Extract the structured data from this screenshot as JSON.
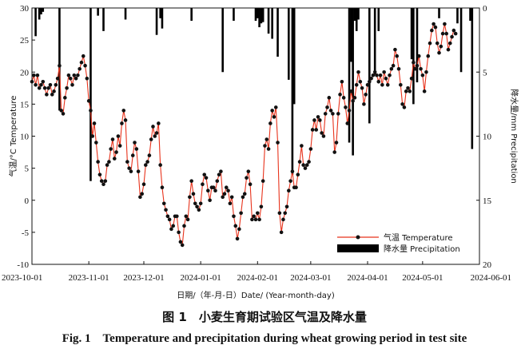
{
  "chart_data": {
    "type": "line+bar",
    "xlabel": "日期/（年-月-日）Date/ (Year-month-day)",
    "ylabel_left": "气温/°C Temperature",
    "ylabel_right": "降水量/mm Precipitation",
    "x_range": [
      "2023-10-01",
      "2024-06-01"
    ],
    "x_ticks": [
      "2023-10-01",
      "2023-11-01",
      "2023-12-01",
      "2024-01-01",
      "2024-02-01",
      "2024-03-01",
      "2024-04-01",
      "2024-05-01",
      "2024-06-01"
    ],
    "ylim_left": [
      -10,
      30
    ],
    "yticks_left": [
      "-10",
      "-5",
      "0",
      "5",
      "10",
      "15",
      "20",
      "25",
      "30"
    ],
    "ylim_right": [
      0,
      20
    ],
    "ylim_right_inverted": true,
    "yticks_right": [
      "0",
      "5",
      "10",
      "15",
      "20"
    ],
    "legend": {
      "placement": "bottom-right",
      "temperature": "气温 Temperature",
      "precipitation": "降水量 Precipitation"
    },
    "colors": {
      "temperature_line": "#e8331c",
      "temperature_marker": "#111111",
      "precipitation_bar": "#000000"
    },
    "temperature_series": {
      "name": "气温 Temperature",
      "start_date": "2023-10-01",
      "step_days": 1,
      "values": [
        18.5,
        19.5,
        18.0,
        19.5,
        17.5,
        18.0,
        18.5,
        17.5,
        16.5,
        17.5,
        18.0,
        16.5,
        17.0,
        18.0,
        19.0,
        21.0,
        14.0,
        13.5,
        16.0,
        17.5,
        19.5,
        19.0,
        18.0,
        19.5,
        19.0,
        19.5,
        20.5,
        21.5,
        22.5,
        21.0,
        19.0,
        15.5,
        14.0,
        10.0,
        12.0,
        9.0,
        6.0,
        4.0,
        3.0,
        2.5,
        3.0,
        5.5,
        6.0,
        8.0,
        9.5,
        6.5,
        7.5,
        10.0,
        8.5,
        12.0,
        14.0,
        12.5,
        6.0,
        5.0,
        4.5,
        7.0,
        9.0,
        8.0,
        4.5,
        0.5,
        1.0,
        2.5,
        5.5,
        6.0,
        7.0,
        9.5,
        11.5,
        10.0,
        10.5,
        12.0,
        5.5,
        2.0,
        -0.5,
        -1.5,
        -2.5,
        -3.0,
        -4.5,
        -4.0,
        -2.5,
        -2.5,
        -5.0,
        -6.5,
        -7.0,
        -4.0,
        -2.5,
        -3.0,
        0.5,
        3.0,
        1.0,
        -0.5,
        -1.0,
        -1.5,
        -0.5,
        2.5,
        4.0,
        3.5,
        1.5,
        0.0,
        2.0,
        2.0,
        1.5,
        3.0,
        4.0,
        4.5,
        0.5,
        1.0,
        2.0,
        1.5,
        -0.5,
        0.5,
        -2.5,
        -4.0,
        -6.0,
        -4.5,
        -2.0,
        0.5,
        1.0,
        3.5,
        4.5,
        2.5,
        -3.0,
        -2.5,
        -3.0,
        -2.0,
        -3.0,
        -1.0,
        3.0,
        8.5,
        9.5,
        8.0,
        12.0,
        14.0,
        13.0,
        14.5,
        9.0,
        -2.0,
        -5.0,
        -3.0,
        -2.0,
        -1.0,
        1.5,
        3.0,
        4.5,
        2.0,
        2.0,
        4.0,
        6.0,
        8.5,
        5.5,
        5.0,
        5.5,
        6.0,
        8.0,
        11.0,
        12.5,
        11.0,
        13.0,
        12.5,
        10.5,
        10.0,
        13.5,
        14.5,
        16.0,
        14.0,
        13.5,
        7.5,
        9.0,
        13.5,
        16.5,
        18.5,
        16.0,
        14.5,
        12.0,
        14.0,
        17.0,
        15.5,
        16.0,
        18.0,
        20.0,
        18.5,
        17.5,
        15.0,
        16.5,
        18.0,
        18.5,
        19.0,
        19.5,
        20.0,
        19.5,
        18.5,
        19.5,
        18.0,
        20.0,
        19.0,
        18.0,
        19.5,
        20.5,
        21.0,
        23.5,
        22.5,
        20.5,
        18.0,
        15.0,
        14.5,
        17.0,
        17.5,
        17.0,
        19.0,
        21.5,
        20.5,
        21.0,
        22.5,
        20.5,
        19.5,
        17.0,
        20.0,
        22.5,
        24.5,
        26.5,
        27.5,
        27.0,
        24.5,
        23.0,
        24.0,
        26.0,
        27.5,
        26.0,
        23.5,
        24.5,
        25.5,
        26.5,
        26.0
      ]
    },
    "precipitation_series": {
      "name": "降水量 Precipitation",
      "events": [
        {
          "date": "2023-10-03",
          "mm": 2.2
        },
        {
          "date": "2023-10-05",
          "mm": 0.9
        },
        {
          "date": "2023-10-06",
          "mm": 0.5
        },
        {
          "date": "2023-10-07",
          "mm": 0.3
        },
        {
          "date": "2023-10-16",
          "mm": 8.0
        },
        {
          "date": "2023-11-02",
          "mm": 13.5
        },
        {
          "date": "2023-11-06",
          "mm": 0.6
        },
        {
          "date": "2023-11-09",
          "mm": 1.8
        },
        {
          "date": "2023-11-21",
          "mm": 0.9
        },
        {
          "date": "2023-12-08",
          "mm": 2.1
        },
        {
          "date": "2023-12-10",
          "mm": 0.8
        },
        {
          "date": "2023-12-11",
          "mm": 1.6
        },
        {
          "date": "2023-12-27",
          "mm": 1.0
        },
        {
          "date": "2024-01-13",
          "mm": 5.0
        },
        {
          "date": "2024-01-19",
          "mm": 1.0
        },
        {
          "date": "2024-01-31",
          "mm": 1.0
        },
        {
          "date": "2024-02-01",
          "mm": 0.8
        },
        {
          "date": "2024-02-02",
          "mm": 1.5
        },
        {
          "date": "2024-02-03",
          "mm": 1.2
        },
        {
          "date": "2024-02-04",
          "mm": 1.1
        },
        {
          "date": "2024-02-07",
          "mm": 2.0
        },
        {
          "date": "2024-02-09",
          "mm": 2.4
        },
        {
          "date": "2024-02-12",
          "mm": 3.8
        },
        {
          "date": "2024-02-18",
          "mm": 5.6
        },
        {
          "date": "2024-02-20",
          "mm": 13.0
        },
        {
          "date": "2024-02-21",
          "mm": 7.5
        },
        {
          "date": "2024-03-22",
          "mm": 10.5
        },
        {
          "date": "2024-03-23",
          "mm": 4.2
        },
        {
          "date": "2024-03-24",
          "mm": 11.5
        },
        {
          "date": "2024-03-25",
          "mm": 1.0
        },
        {
          "date": "2024-03-26",
          "mm": 1.8
        },
        {
          "date": "2024-03-27",
          "mm": 0.9
        },
        {
          "date": "2024-04-02",
          "mm": 9.0
        },
        {
          "date": "2024-04-05",
          "mm": 5.2
        },
        {
          "date": "2024-04-07",
          "mm": 1.8
        },
        {
          "date": "2024-04-25",
          "mm": 4.0
        },
        {
          "date": "2024-04-26",
          "mm": 7.5
        },
        {
          "date": "2024-04-28",
          "mm": 5.8
        },
        {
          "date": "2024-05-10",
          "mm": 0.8
        },
        {
          "date": "2024-05-20",
          "mm": 1.2
        },
        {
          "date": "2024-05-22",
          "mm": 5.0
        },
        {
          "date": "2024-05-27",
          "mm": 1.0
        },
        {
          "date": "2024-05-28",
          "mm": 11.0
        }
      ]
    }
  },
  "caption": {
    "zh": "图 1　小麦生育期试验区气温及降水量",
    "en": "Fig. 1　Temperature and precipitation during wheat growing period in test site"
  }
}
